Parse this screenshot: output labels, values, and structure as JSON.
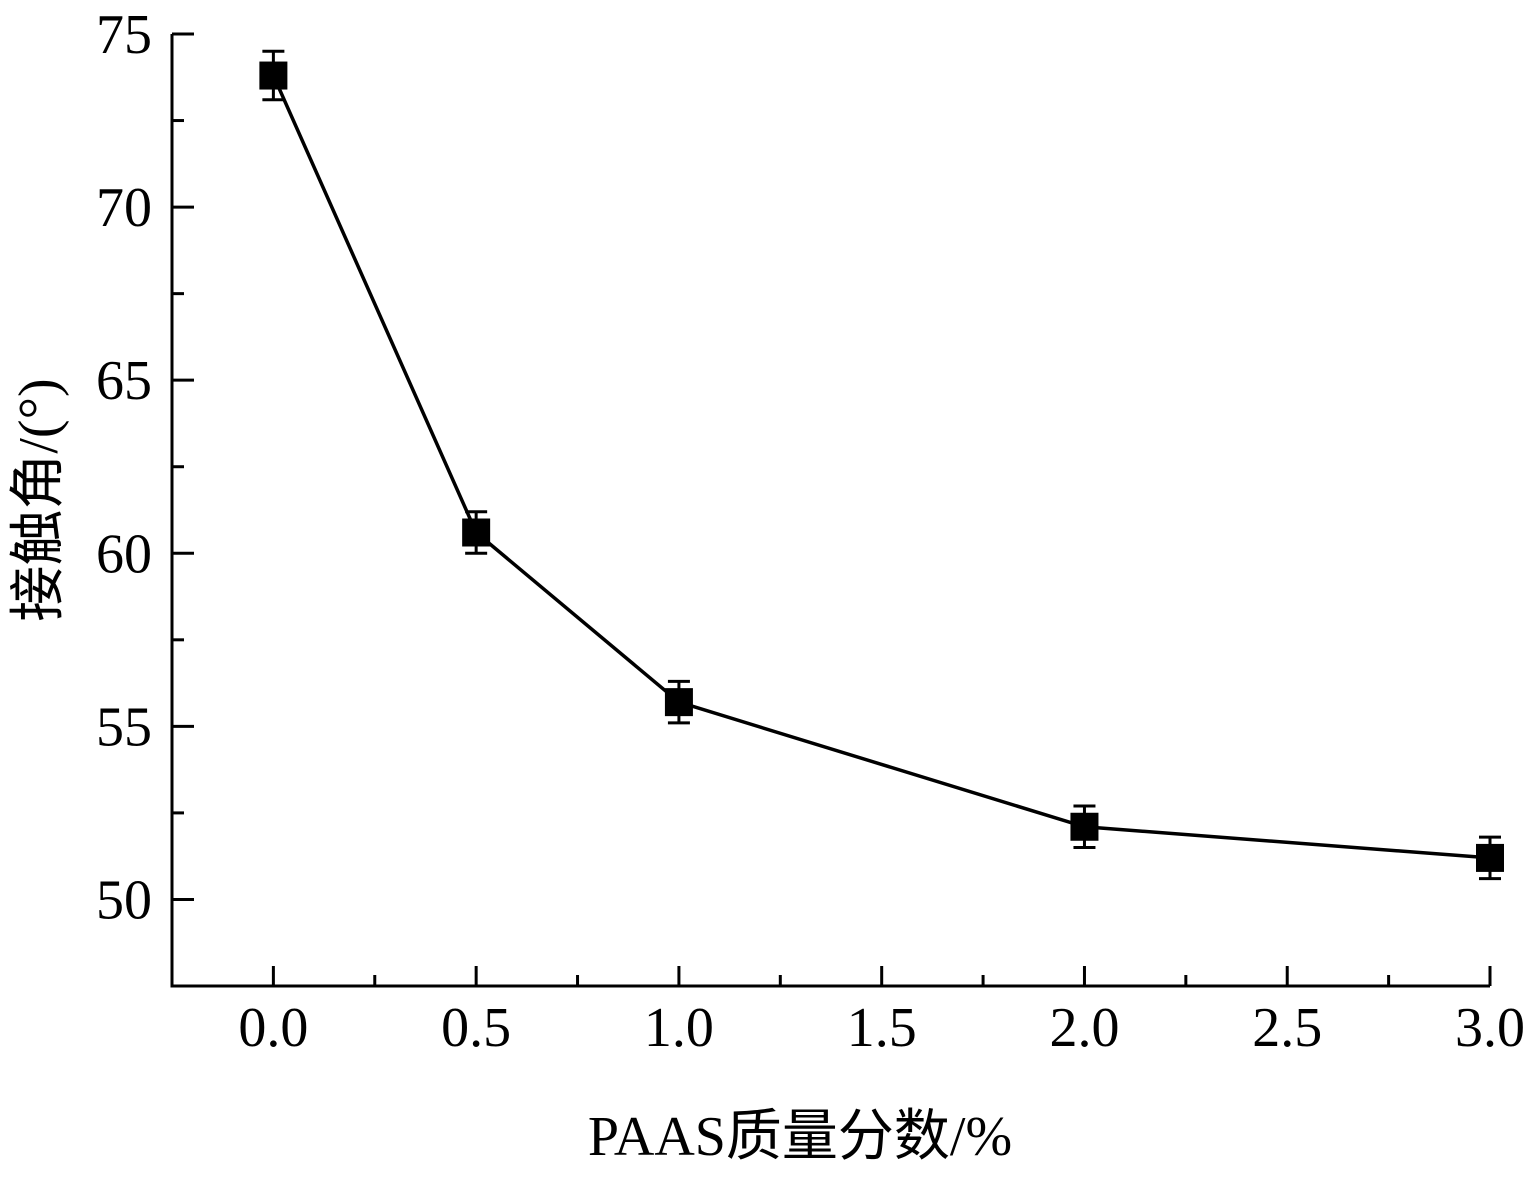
{
  "chart_data": {
    "type": "line",
    "title": "",
    "xlabel": "PAAS质量分数/%",
    "ylabel": "接触角/(°)",
    "xlim": [
      -0.25,
      3.0
    ],
    "ylim": [
      47.5,
      75
    ],
    "x_ticks": [
      0.0,
      0.5,
      1.0,
      1.5,
      2.0,
      2.5,
      3.0
    ],
    "x_tick_labels": [
      "0.0",
      "0.5",
      "1.0",
      "1.5",
      "2.0",
      "2.5",
      "3.0"
    ],
    "y_ticks": [
      50,
      55,
      60,
      65,
      70,
      75
    ],
    "y_tick_labels": [
      "50",
      "55",
      "60",
      "65",
      "70",
      "75"
    ],
    "grid": false,
    "series": [
      {
        "x": [
          0.0,
          0.5,
          1.0,
          2.0,
          3.0
        ],
        "y": [
          73.8,
          60.6,
          55.7,
          52.1,
          51.2
        ],
        "error": [
          0.7,
          0.6,
          0.6,
          0.6,
          0.6
        ],
        "marker": "square",
        "color": "#000000"
      }
    ]
  }
}
